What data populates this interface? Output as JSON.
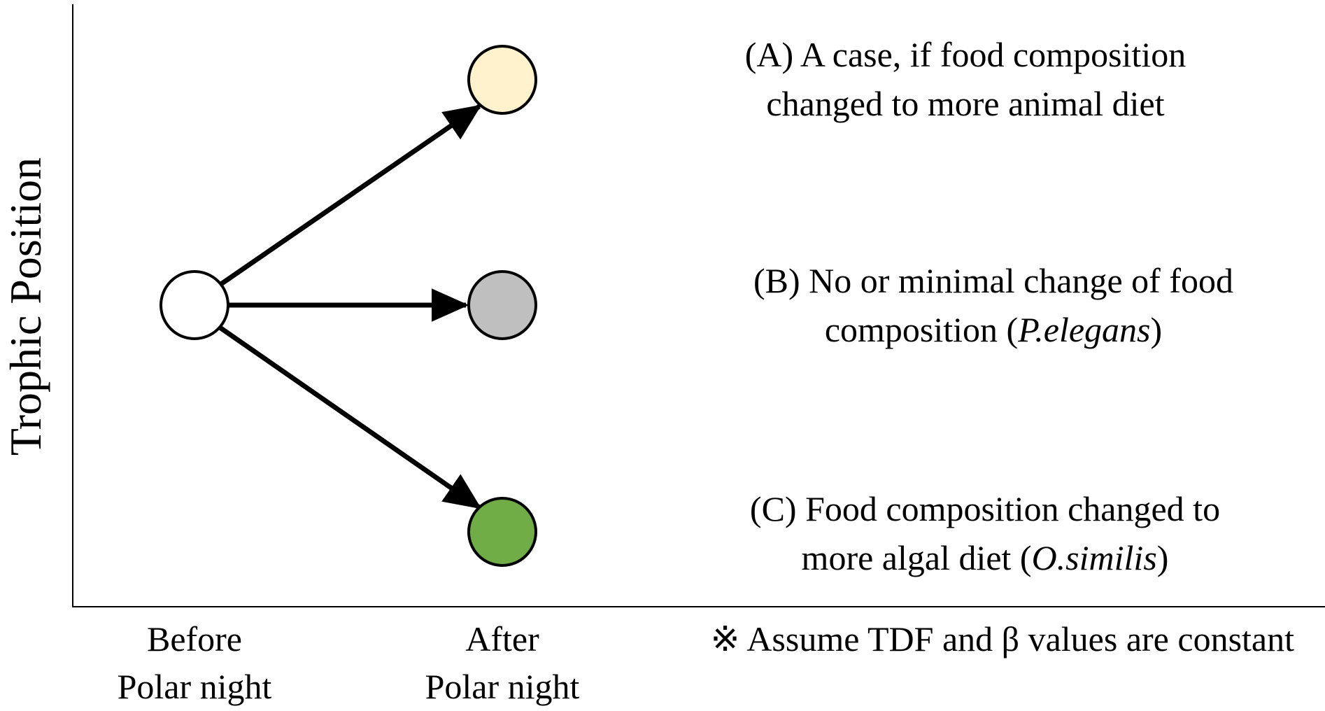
{
  "axis": {
    "y_label": "Trophic Position",
    "x_labels": [
      {
        "line1": "Before",
        "line2": "Polar night"
      },
      {
        "line1": "After",
        "line2": "Polar night"
      }
    ]
  },
  "nodes": {
    "before": {
      "name": "before-polar-night-node",
      "fill": "#ffffff"
    },
    "a": {
      "name": "case-a-node",
      "fill": "#fff2cc"
    },
    "b": {
      "name": "case-b-node",
      "fill": "#bfbfbf"
    },
    "c": {
      "name": "case-c-node",
      "fill": "#70ad47"
    }
  },
  "cases": {
    "a": {
      "line1": "(A) A case, if food composition",
      "line2": "changed to more animal diet"
    },
    "b": {
      "line1": "(B) No or minimal change of food",
      "line2_pre": "composition (",
      "line2_italic": "P.elegans",
      "line2_post": ")"
    },
    "c": {
      "line1": "(C) Food composition changed to",
      "line2_pre": "more algal diet (",
      "line2_italic": "O.similis",
      "line2_post": ")"
    }
  },
  "note": "※ Assume TDF and β values are constant"
}
